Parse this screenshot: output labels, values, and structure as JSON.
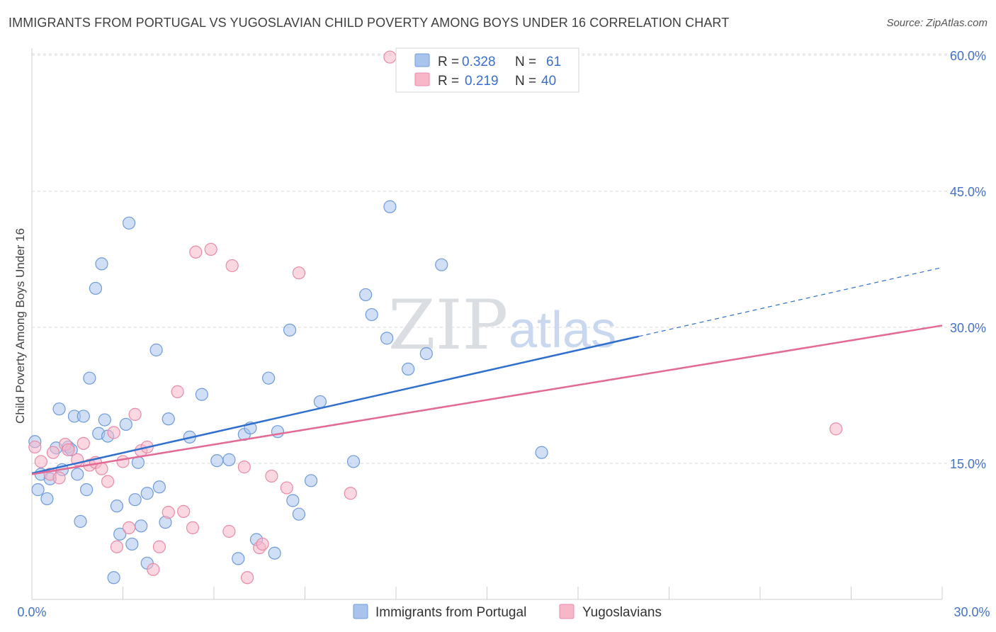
{
  "header": {
    "title": "IMMIGRANTS FROM PORTUGAL VS YUGOSLAVIAN CHILD POVERTY AMONG BOYS UNDER 16 CORRELATION CHART",
    "source": "Source: ZipAtlas.com"
  },
  "watermark": {
    "zip": "ZIP",
    "atlas": "atlas"
  },
  "legend": {
    "rows": [
      {
        "r_label": "R = ",
        "r_value": "0.328",
        "n_label": "N = ",
        "n_value": "61",
        "color": "#a9c4ec"
      },
      {
        "r_label": "R = ",
        "r_value": "0.219",
        "n_label": "N = ",
        "n_value": "40",
        "color": "#f7b7c9"
      }
    ]
  },
  "chart_data": {
    "type": "scatter",
    "title": "IMMIGRANTS FROM PORTUGAL VS YUGOSLAVIAN CHILD POVERTY AMONG BOYS UNDER 16 CORRELATION CHART",
    "xlabel": "",
    "ylabel": "Child Poverty Among Boys Under 16",
    "xlim": [
      0,
      30
    ],
    "ylim": [
      0,
      60
    ],
    "x_tick_labels": [
      "0.0%",
      "30.0%"
    ],
    "y_ticks": [
      15,
      30,
      45,
      60
    ],
    "y_tick_labels": [
      "15.0%",
      "30.0%",
      "45.0%",
      "60.0%"
    ],
    "grid": true,
    "legend_position": "top-center",
    "series": [
      {
        "name": "Immigrants from Portugal",
        "color": "#a9c4ec",
        "stroke": "#6f9bdc",
        "trend": {
          "x0": 0,
          "y0": 13.9,
          "x1": 20.0,
          "y1": 29.0,
          "dash_x1": 30.0,
          "dash_y1": 36.6,
          "color": "#2f6fce"
        },
        "points": [
          [
            0.1,
            17.4
          ],
          [
            0.3,
            13.8
          ],
          [
            0.2,
            12.1
          ],
          [
            0.5,
            11.1
          ],
          [
            0.6,
            13.3
          ],
          [
            0.8,
            16.7
          ],
          [
            0.9,
            21.0
          ],
          [
            1.0,
            14.3
          ],
          [
            1.2,
            16.8
          ],
          [
            1.5,
            13.8
          ],
          [
            1.4,
            20.2
          ],
          [
            1.6,
            8.6
          ],
          [
            1.7,
            20.2
          ],
          [
            1.8,
            12.1
          ],
          [
            1.9,
            24.4
          ],
          [
            2.1,
            34.3
          ],
          [
            2.2,
            18.3
          ],
          [
            2.3,
            37.0
          ],
          [
            2.4,
            19.8
          ],
          [
            2.5,
            18.0
          ],
          [
            2.8,
            10.3
          ],
          [
            2.9,
            7.2
          ],
          [
            3.1,
            19.3
          ],
          [
            3.2,
            41.5
          ],
          [
            3.4,
            11.0
          ],
          [
            3.5,
            15.1
          ],
          [
            3.6,
            8.1
          ],
          [
            3.8,
            11.7
          ],
          [
            3.8,
            4.0
          ],
          [
            3.3,
            6.1
          ],
          [
            4.1,
            27.5
          ],
          [
            4.2,
            12.4
          ],
          [
            4.4,
            8.5
          ],
          [
            4.5,
            19.9
          ],
          [
            5.2,
            17.9
          ],
          [
            5.6,
            22.6
          ],
          [
            6.1,
            15.3
          ],
          [
            6.5,
            15.4
          ],
          [
            6.8,
            4.5
          ],
          [
            7.0,
            18.2
          ],
          [
            7.2,
            18.9
          ],
          [
            7.4,
            6.6
          ],
          [
            7.8,
            24.4
          ],
          [
            8.0,
            5.1
          ],
          [
            8.1,
            18.5
          ],
          [
            8.5,
            29.7
          ],
          [
            8.6,
            10.9
          ],
          [
            8.8,
            9.4
          ],
          [
            9.2,
            13.1
          ],
          [
            9.5,
            21.8
          ],
          [
            10.6,
            15.2
          ],
          [
            11.0,
            33.6
          ],
          [
            11.2,
            31.4
          ],
          [
            11.7,
            28.8
          ],
          [
            11.8,
            43.3
          ],
          [
            12.4,
            25.4
          ],
          [
            13.0,
            27.1
          ],
          [
            13.5,
            36.9
          ],
          [
            16.8,
            16.2
          ],
          [
            2.7,
            2.4
          ],
          [
            1.3,
            16.5
          ]
        ]
      },
      {
        "name": "Yugoslavians",
        "color": "#f7b7c9",
        "stroke": "#e98aa6",
        "trend": {
          "x0": 0,
          "y0": 13.8,
          "x1": 30.0,
          "y1": 30.2,
          "color": "#e26a94"
        },
        "points": [
          [
            0.1,
            16.8
          ],
          [
            0.3,
            15.2
          ],
          [
            0.6,
            13.8
          ],
          [
            0.7,
            16.2
          ],
          [
            0.9,
            13.4
          ],
          [
            1.1,
            17.1
          ],
          [
            1.2,
            16.5
          ],
          [
            1.5,
            15.4
          ],
          [
            1.7,
            17.2
          ],
          [
            1.9,
            14.8
          ],
          [
            2.1,
            15.1
          ],
          [
            2.3,
            14.4
          ],
          [
            2.5,
            13.0
          ],
          [
            2.7,
            18.4
          ],
          [
            2.8,
            5.8
          ],
          [
            3.0,
            15.2
          ],
          [
            3.2,
            7.9
          ],
          [
            3.4,
            20.4
          ],
          [
            3.6,
            16.4
          ],
          [
            3.8,
            16.8
          ],
          [
            4.0,
            3.3
          ],
          [
            4.2,
            5.8
          ],
          [
            4.5,
            9.6
          ],
          [
            4.8,
            22.9
          ],
          [
            5.0,
            9.7
          ],
          [
            5.3,
            7.9
          ],
          [
            5.4,
            38.3
          ],
          [
            5.9,
            38.6
          ],
          [
            6.5,
            7.5
          ],
          [
            6.6,
            36.8
          ],
          [
            7.0,
            14.6
          ],
          [
            7.1,
            2.4
          ],
          [
            7.5,
            5.7
          ],
          [
            7.6,
            6.1
          ],
          [
            7.9,
            13.6
          ],
          [
            8.4,
            12.3
          ],
          [
            8.8,
            36.0
          ],
          [
            10.5,
            11.7
          ],
          [
            11.8,
            59.8
          ],
          [
            26.5,
            18.8
          ]
        ]
      }
    ]
  },
  "bottom_legend": {
    "items": [
      {
        "label": "Immigrants from Portugal",
        "color": "#a9c4ec"
      },
      {
        "label": "Yugoslavians",
        "color": "#f7b7c9"
      }
    ]
  }
}
